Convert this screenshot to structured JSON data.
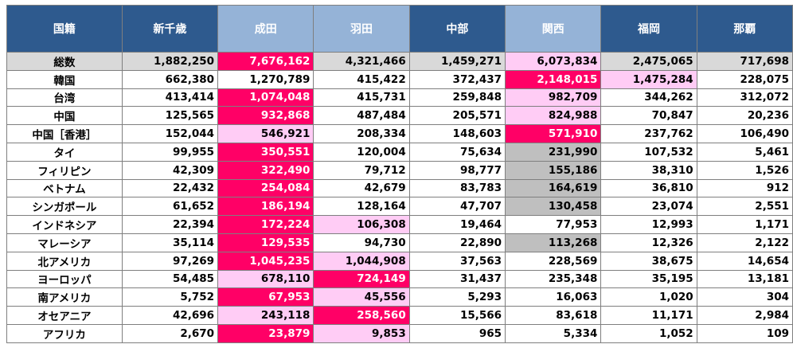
{
  "colors": {
    "header_dark": "#2e5a8e",
    "header_light": "#95b3d7",
    "total_row_bg": "#d9d9d9",
    "hot": "#ff0066",
    "pink": "#ffccf5",
    "gray": "#bfbfbf",
    "white": "#ffffff"
  },
  "table": {
    "header": [
      {
        "label": "国籍",
        "tone": "dark"
      },
      {
        "label": "新千歳",
        "tone": "dark"
      },
      {
        "label": "成田",
        "tone": "light"
      },
      {
        "label": "羽田",
        "tone": "light"
      },
      {
        "label": "中部",
        "tone": "dark"
      },
      {
        "label": "関西",
        "tone": "light"
      },
      {
        "label": "福岡",
        "tone": "dark"
      },
      {
        "label": "那覇",
        "tone": "dark"
      }
    ],
    "rows": [
      {
        "label": "総数",
        "total": true,
        "cells": [
          {
            "v": "1,882,250"
          },
          {
            "v": "7,676,162",
            "hl": "hot"
          },
          {
            "v": "4,321,466"
          },
          {
            "v": "1,459,271"
          },
          {
            "v": "6,073,834",
            "hl": "pink"
          },
          {
            "v": "2,475,065"
          },
          {
            "v": "717,698"
          }
        ]
      },
      {
        "label": "韓国",
        "cells": [
          {
            "v": "662,380"
          },
          {
            "v": "1,270,789"
          },
          {
            "v": "415,422"
          },
          {
            "v": "372,437"
          },
          {
            "v": "2,148,015",
            "hl": "hot"
          },
          {
            "v": "1,475,284",
            "hl": "pink"
          },
          {
            "v": "228,075"
          }
        ]
      },
      {
        "label": "台湾",
        "cells": [
          {
            "v": "413,414"
          },
          {
            "v": "1,074,048",
            "hl": "hot"
          },
          {
            "v": "415,731"
          },
          {
            "v": "259,848"
          },
          {
            "v": "982,709",
            "hl": "pink"
          },
          {
            "v": "344,262"
          },
          {
            "v": "312,072"
          }
        ]
      },
      {
        "label": "中国",
        "cells": [
          {
            "v": "125,565"
          },
          {
            "v": "932,868",
            "hl": "hot"
          },
          {
            "v": "487,484"
          },
          {
            "v": "205,571"
          },
          {
            "v": "824,988",
            "hl": "pink"
          },
          {
            "v": "70,847"
          },
          {
            "v": "20,236"
          }
        ]
      },
      {
        "label": "中国［香港］",
        "cells": [
          {
            "v": "152,044"
          },
          {
            "v": "546,921",
            "hl": "pink"
          },
          {
            "v": "208,334"
          },
          {
            "v": "148,603"
          },
          {
            "v": "571,910",
            "hl": "hot"
          },
          {
            "v": "237,762"
          },
          {
            "v": "106,490"
          }
        ]
      },
      {
        "label": "タイ",
        "cells": [
          {
            "v": "99,955"
          },
          {
            "v": "350,551",
            "hl": "hot"
          },
          {
            "v": "120,004"
          },
          {
            "v": "75,634"
          },
          {
            "v": "231,990",
            "hl": "gray"
          },
          {
            "v": "107,532"
          },
          {
            "v": "5,461"
          }
        ]
      },
      {
        "label": "フィリピン",
        "cells": [
          {
            "v": "42,309"
          },
          {
            "v": "322,490",
            "hl": "hot"
          },
          {
            "v": "79,712"
          },
          {
            "v": "98,777"
          },
          {
            "v": "155,186",
            "hl": "gray"
          },
          {
            "v": "38,310"
          },
          {
            "v": "1,526"
          }
        ]
      },
      {
        "label": "ベトナム",
        "cells": [
          {
            "v": "22,432"
          },
          {
            "v": "254,084",
            "hl": "hot"
          },
          {
            "v": "42,679"
          },
          {
            "v": "83,783"
          },
          {
            "v": "164,619",
            "hl": "gray"
          },
          {
            "v": "36,810"
          },
          {
            "v": "912"
          }
        ]
      },
      {
        "label": "シンガポール",
        "cells": [
          {
            "v": "61,652"
          },
          {
            "v": "186,194",
            "hl": "hot"
          },
          {
            "v": "128,164"
          },
          {
            "v": "47,707"
          },
          {
            "v": "130,458",
            "hl": "gray"
          },
          {
            "v": "23,074"
          },
          {
            "v": "2,551"
          }
        ]
      },
      {
        "label": "インドネシア",
        "cells": [
          {
            "v": "22,394"
          },
          {
            "v": "172,224",
            "hl": "hot"
          },
          {
            "v": "106,308",
            "hl": "pink"
          },
          {
            "v": "19,464"
          },
          {
            "v": "77,953"
          },
          {
            "v": "12,993"
          },
          {
            "v": "1,171"
          }
        ]
      },
      {
        "label": "マレーシア",
        "cells": [
          {
            "v": "35,114"
          },
          {
            "v": "129,535",
            "hl": "hot"
          },
          {
            "v": "94,730"
          },
          {
            "v": "22,890"
          },
          {
            "v": "113,268",
            "hl": "gray"
          },
          {
            "v": "12,326"
          },
          {
            "v": "2,122"
          }
        ]
      },
      {
        "label": "北アメリカ",
        "cells": [
          {
            "v": "97,269"
          },
          {
            "v": "1,045,235",
            "hl": "hot"
          },
          {
            "v": "1,044,908",
            "hl": "pink"
          },
          {
            "v": "37,563"
          },
          {
            "v": "228,569"
          },
          {
            "v": "38,675"
          },
          {
            "v": "14,654"
          }
        ]
      },
      {
        "label": "ヨーロッパ",
        "cells": [
          {
            "v": "54,485"
          },
          {
            "v": "678,110",
            "hl": "pink"
          },
          {
            "v": "724,149",
            "hl": "hot"
          },
          {
            "v": "31,437"
          },
          {
            "v": "235,348"
          },
          {
            "v": "35,195"
          },
          {
            "v": "13,181"
          }
        ]
      },
      {
        "label": "南アメリカ",
        "cells": [
          {
            "v": "5,752"
          },
          {
            "v": "67,953",
            "hl": "hot"
          },
          {
            "v": "45,556",
            "hl": "pink"
          },
          {
            "v": "5,293"
          },
          {
            "v": "16,063"
          },
          {
            "v": "1,020"
          },
          {
            "v": "304"
          }
        ]
      },
      {
        "label": "オセアニア",
        "cells": [
          {
            "v": "42,696"
          },
          {
            "v": "243,118",
            "hl": "pink"
          },
          {
            "v": "258,560",
            "hl": "hot"
          },
          {
            "v": "15,566"
          },
          {
            "v": "83,618"
          },
          {
            "v": "11,171"
          },
          {
            "v": "2,984"
          }
        ]
      },
      {
        "label": "アフリカ",
        "cells": [
          {
            "v": "2,670"
          },
          {
            "v": "23,879",
            "hl": "hot"
          },
          {
            "v": "9,853",
            "hl": "pink"
          },
          {
            "v": "965"
          },
          {
            "v": "5,334"
          },
          {
            "v": "1,052"
          },
          {
            "v": "109"
          }
        ]
      }
    ]
  }
}
